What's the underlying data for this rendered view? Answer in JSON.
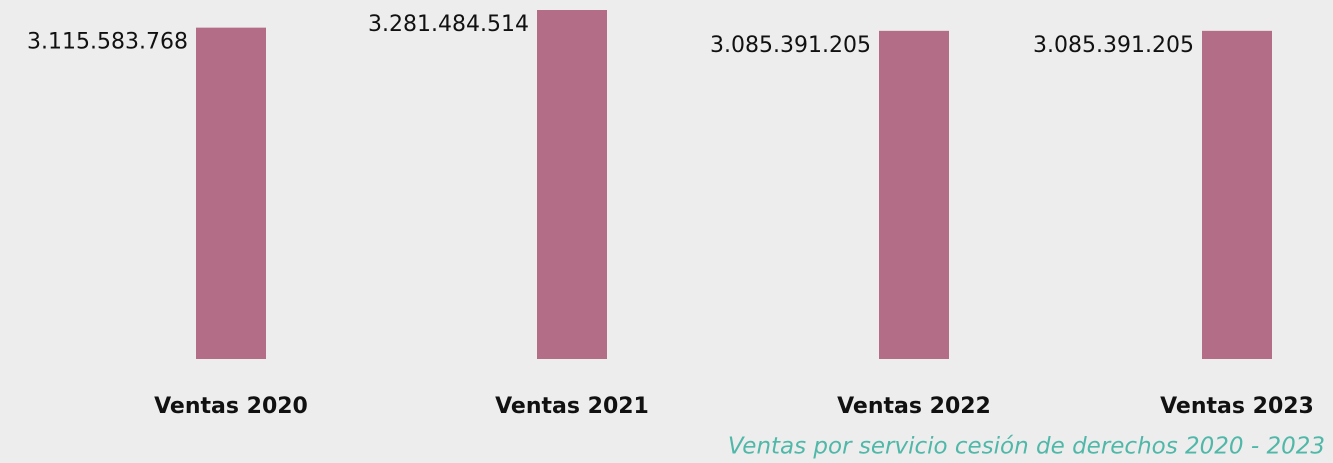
{
  "chart_data": {
    "type": "bar",
    "title": "Ventas por servicio cesión de derechos 2020 - 2023",
    "categories": [
      "Ventas 2020",
      "Ventas 2021",
      "Ventas 2022",
      "Ventas 2023"
    ],
    "values": [
      3115583768,
      3281484514,
      3085391205,
      3085391205
    ],
    "value_labels": [
      "3.115.583.768",
      "3.281.484.514",
      "3.085.391.205",
      "3.085.391.205"
    ],
    "color": "#b36d87"
  }
}
